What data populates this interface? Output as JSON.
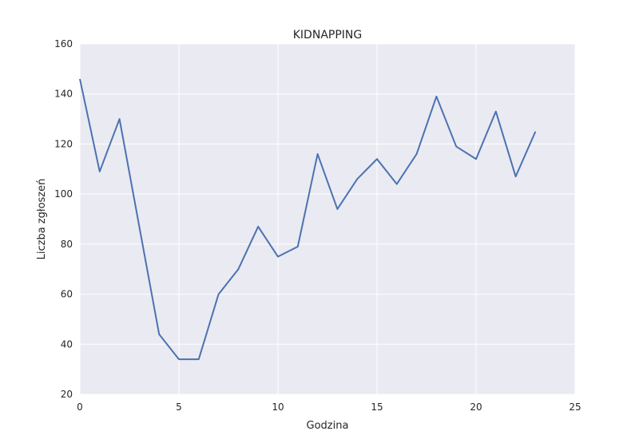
{
  "chart_data": {
    "type": "line",
    "title": "KIDNAPPING",
    "xlabel": "Godzina",
    "ylabel": "Liczba zgłoszeń",
    "xlim": [
      0,
      25
    ],
    "ylim": [
      20,
      160
    ],
    "xticks": [
      0,
      5,
      10,
      15,
      20,
      25
    ],
    "yticks": [
      20,
      40,
      60,
      80,
      100,
      120,
      140,
      160
    ],
    "grid": true,
    "colors": {
      "plot_background": "#eaeaf2",
      "grid": "#ffffff",
      "line": "#4c72b0",
      "text": "#262626"
    },
    "series": [
      {
        "x": [
          0,
          1,
          2,
          3,
          4,
          5,
          6,
          7,
          8,
          9,
          10,
          11,
          12,
          13,
          14,
          15,
          16,
          17,
          18,
          19,
          20,
          21,
          22,
          23
        ],
        "values": [
          146,
          109,
          130,
          87,
          44,
          34,
          34,
          60,
          70,
          87,
          75,
          79,
          116,
          94,
          106,
          114,
          104,
          116,
          139,
          119,
          114,
          133,
          107,
          125
        ]
      }
    ]
  }
}
